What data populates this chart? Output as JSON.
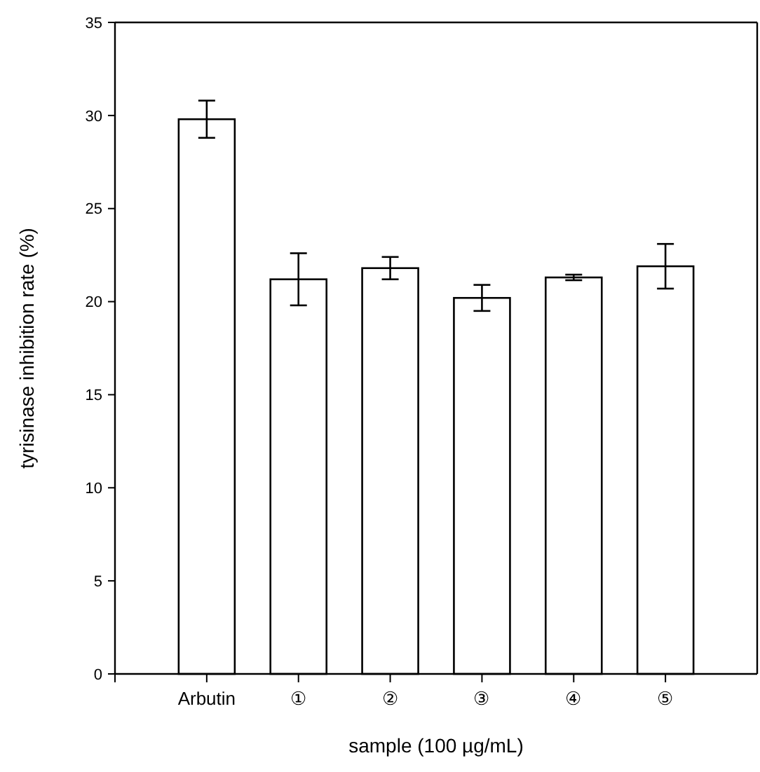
{
  "chart_data": {
    "type": "bar",
    "xlabel": "sample (100 µg/mL)",
    "ylabel": "tyrisinase inhibition rate (%)",
    "categories": [
      "Arbutin",
      "①",
      "②",
      "③",
      "④",
      "⑤"
    ],
    "values": [
      29.8,
      21.2,
      21.8,
      20.2,
      21.3,
      21.9
    ],
    "errors": [
      1.0,
      1.4,
      0.6,
      0.7,
      0.15,
      1.2
    ],
    "color": "#ffffff",
    "ylim": [
      0,
      35
    ],
    "yticks": [
      0,
      5,
      10,
      15,
      20,
      25,
      30,
      35
    ],
    "grid": false
  }
}
